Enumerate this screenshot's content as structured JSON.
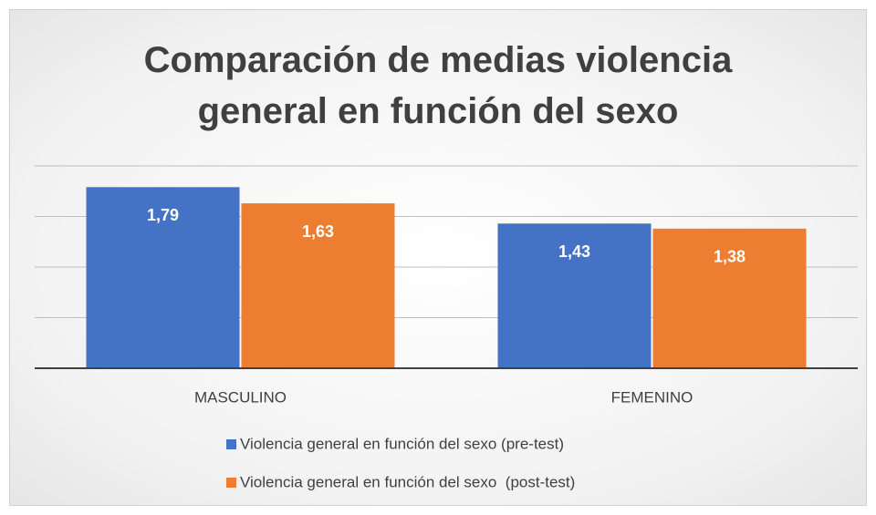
{
  "chart_data": {
    "type": "bar",
    "title": "Comparación de medias violencia general en función del sexo",
    "categories": [
      "MASCULINO",
      "FEMENINO"
    ],
    "series": [
      {
        "name": "Violencia general en función del sexo (pre-test)",
        "color": "#4472c4",
        "values": [
          1.79,
          1.43
        ],
        "value_labels": [
          "1,79",
          "1,43"
        ]
      },
      {
        "name": "Violencia general en función del sexo  (post-test)",
        "color": "#ed7d31",
        "values": [
          1.63,
          1.38
        ],
        "value_labels": [
          "1,63",
          "1,38"
        ]
      }
    ],
    "ylim": [
      0,
      2
    ],
    "yticks": [
      0,
      0.5,
      1,
      1.5,
      2
    ],
    "grid": true,
    "legend": "bottom"
  }
}
